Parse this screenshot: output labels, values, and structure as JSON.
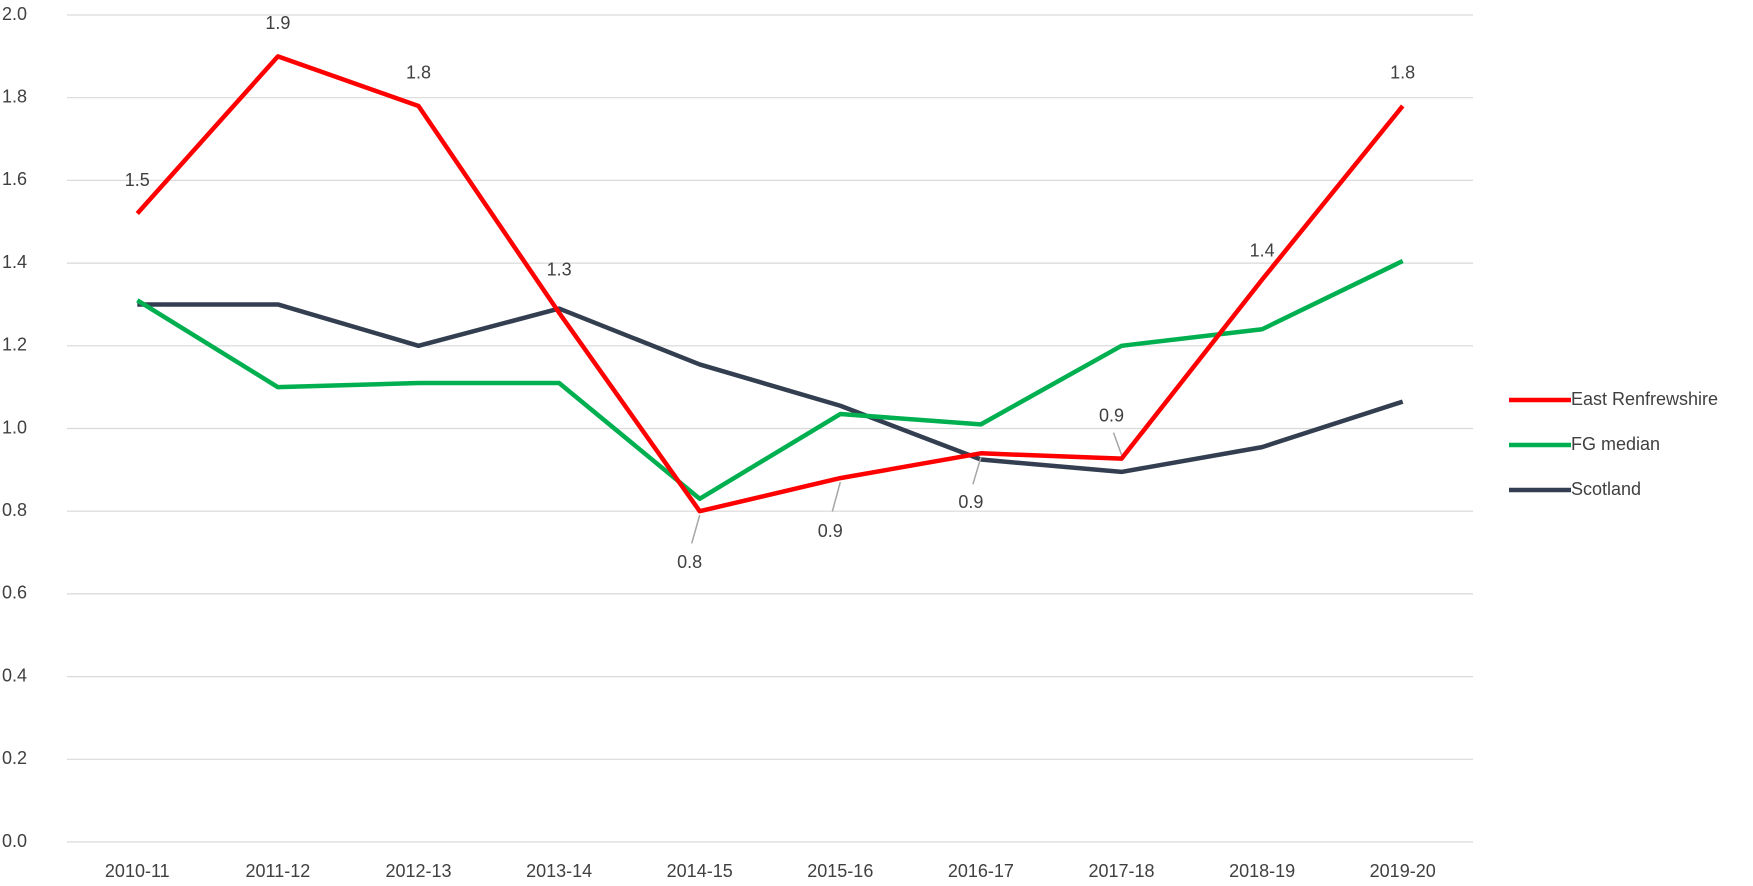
{
  "chart_data": {
    "type": "line",
    "categories": [
      "2010-11",
      "2011-12",
      "2012-13",
      "2013-14",
      "2014-15",
      "2015-16",
      "2016-17",
      "2017-18",
      "2018-19",
      "2019-20"
    ],
    "series": [
      {
        "name": "East Renfrewshire",
        "color": "#ff0000",
        "values": [
          1.52,
          1.9,
          1.78,
          1.28,
          0.8,
          0.88,
          0.94,
          0.927,
          1.36,
          1.78
        ],
        "value_labels": [
          "1.5",
          "1.9",
          "1.8",
          "1.3",
          "0.8",
          "0.9",
          "0.9",
          "0.9",
          "1.4",
          "1.8"
        ]
      },
      {
        "name": "FG median",
        "color": "#00b050",
        "values": [
          1.31,
          1.1,
          1.11,
          1.11,
          0.83,
          1.035,
          1.01,
          1.2,
          1.24,
          1.405
        ]
      },
      {
        "name": "Scotland",
        "color": "#333f50",
        "values": [
          1.3,
          1.3,
          1.2,
          1.29,
          1.155,
          1.055,
          0.925,
          0.895,
          0.955,
          1.065
        ]
      }
    ],
    "ylim": [
      0,
      2
    ],
    "yticks": [
      {
        "value": 0,
        "label": "0.0"
      },
      {
        "value": 0.2,
        "label": "0.2"
      },
      {
        "value": 0.4,
        "label": "0.4"
      },
      {
        "value": 0.6,
        "label": "0.6"
      },
      {
        "value": 0.8,
        "label": "0.8"
      },
      {
        "value": 1,
        "label": "1.0"
      },
      {
        "value": 1.2,
        "label": "1.2"
      },
      {
        "value": 1.4,
        "label": "1.4"
      },
      {
        "value": 1.6,
        "label": "1.6"
      },
      {
        "value": 1.8,
        "label": "1.8"
      },
      {
        "value": 2,
        "label": "2.0"
      }
    ],
    "grid": true,
    "legend": "right"
  }
}
